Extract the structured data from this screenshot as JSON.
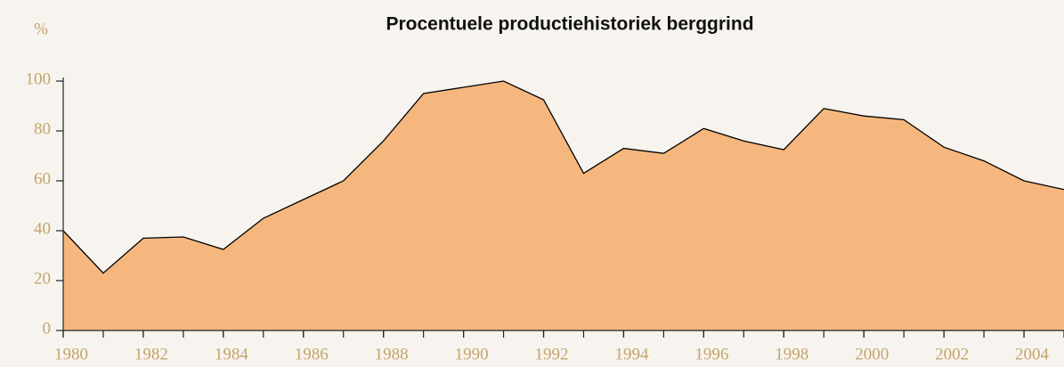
{
  "chart_data": {
    "type": "area",
    "title": "Procentuele productiehistoriek berggrind",
    "y_label": "%",
    "x": [
      1980,
      1981,
      1982,
      1983,
      1984,
      1985,
      1986,
      1987,
      1988,
      1989,
      1990,
      1991,
      1992,
      1993,
      1994,
      1995,
      1996,
      1997,
      1998,
      1999,
      2000,
      2001,
      2002,
      2003,
      2004,
      2005
    ],
    "values": [
      40,
      23,
      37,
      37.5,
      32.5,
      45,
      52.5,
      60,
      76,
      95,
      97.5,
      100,
      92.5,
      63,
      73,
      71,
      81,
      76,
      72.5,
      89,
      86,
      84.5,
      73.5,
      68,
      60,
      56.5
    ],
    "color": "#f5b77e",
    "line_color": "#000000",
    "xlim": [
      1980,
      2005
    ],
    "xticks": [
      1980,
      1982,
      1984,
      1986,
      1988,
      1990,
      1992,
      1994,
      1996,
      1998,
      2000,
      2002,
      2004
    ],
    "ylim": [
      0,
      100
    ],
    "yticks": [
      0,
      20,
      40,
      60,
      80,
      100
    ]
  }
}
